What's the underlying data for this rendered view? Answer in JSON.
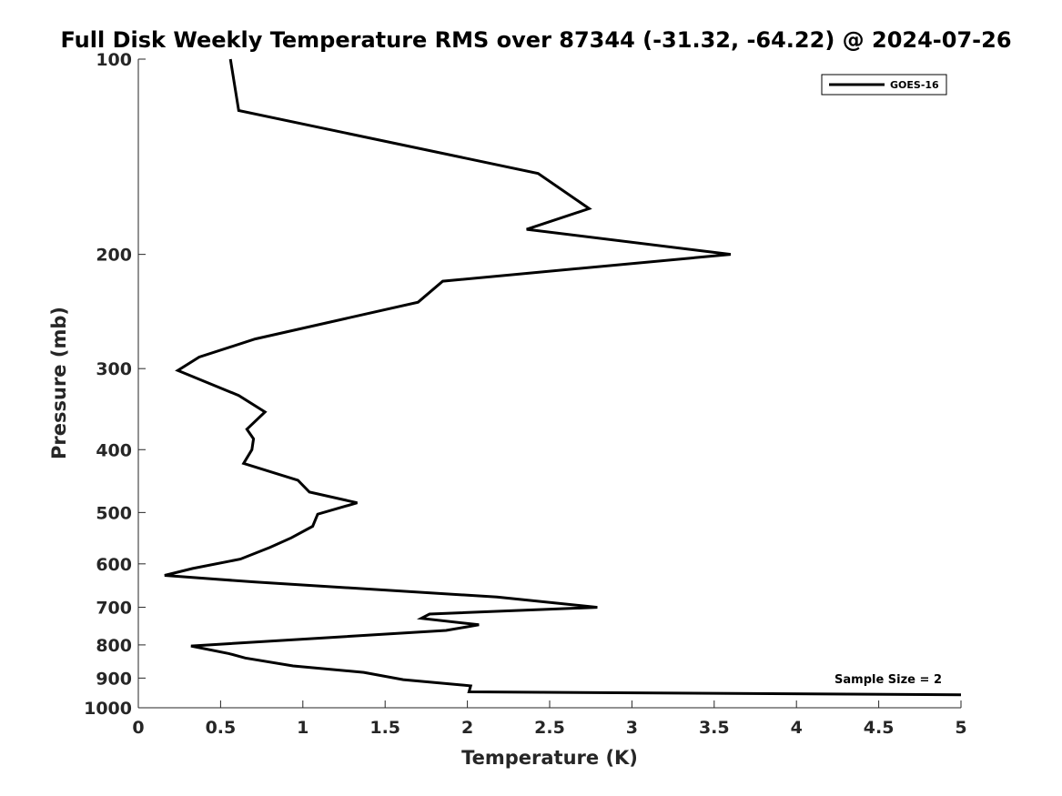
{
  "chart_data": {
    "type": "line",
    "title": "Full Disk Weekly Temperature RMS over 87344 (-31.32, -64.22) @ 2024-07-26",
    "xlabel": "Temperature (K)",
    "ylabel": "Pressure (mb)",
    "xlim": [
      0,
      5
    ],
    "ylim": [
      100,
      1000
    ],
    "y_scale": "log",
    "y_reversed": true,
    "grid": false,
    "legend_position": "top-right",
    "x_ticks": [
      0,
      0.5,
      1,
      1.5,
      2,
      2.5,
      3,
      3.5,
      4,
      4.5,
      5
    ],
    "x_tick_labels": [
      "0",
      "0.5",
      "1",
      "1.5",
      "2",
      "2.5",
      "3",
      "3.5",
      "4",
      "4.5",
      "5"
    ],
    "y_ticks": [
      100,
      200,
      300,
      400,
      500,
      600,
      700,
      800,
      900,
      1000
    ],
    "y_tick_labels": [
      "100",
      "200",
      "300",
      "400",
      "500",
      "600",
      "700",
      "800",
      "900",
      "1000"
    ],
    "series": [
      {
        "name": "GOES-16",
        "color": "#000000",
        "x": [
          0.56,
          0.61,
          2.43,
          2.74,
          2.36,
          3.6,
          1.85,
          1.7,
          0.71,
          0.37,
          0.24,
          0.61,
          0.77,
          0.66,
          0.7,
          0.69,
          0.64,
          0.97,
          1.04,
          1.33,
          1.09,
          1.06,
          0.93,
          0.8,
          0.62,
          0.33,
          0.16,
          0.71,
          2.18,
          2.79,
          1.77,
          1.72,
          2.07,
          1.87,
          0.32,
          0.55,
          0.65,
          0.94,
          1.37,
          1.61,
          2.02,
          2.01,
          5.0
        ],
        "y": [
          100,
          120,
          150,
          170,
          183,
          200,
          220,
          237,
          270,
          288,
          302,
          330,
          350,
          372,
          385,
          400,
          420,
          446,
          465,
          483,
          503,
          525,
          547,
          566,
          590,
          610,
          625,
          640,
          675,
          700,
          717,
          728,
          745,
          760,
          803,
          825,
          838,
          862,
          882,
          905,
          925,
          945,
          955
        ]
      }
    ],
    "annotations": [
      {
        "text": "Sample Size = 2"
      }
    ]
  }
}
